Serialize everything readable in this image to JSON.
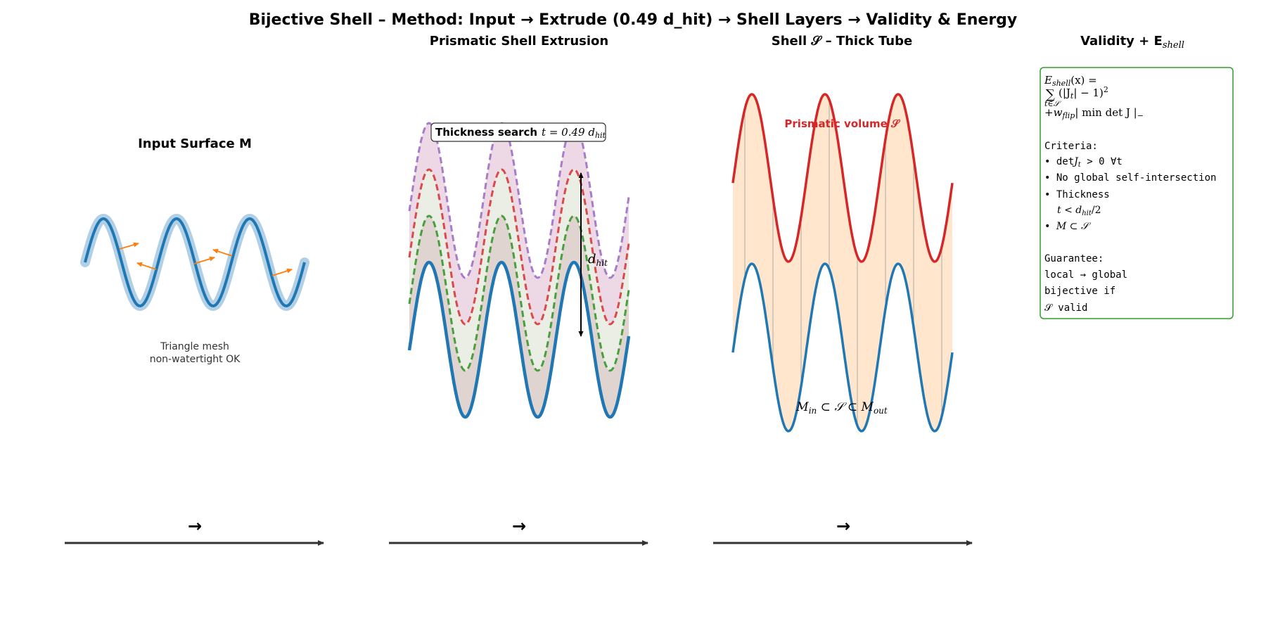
{
  "figure": {
    "title": "Bijective Shell – Method: Input → Extrude (0.49 d_hit) → Shell Layers → Validity & Energy"
  },
  "panels": {
    "input": {
      "title": "Input Surface M",
      "caption_line1": "Triangle mesh",
      "caption_line2": "non-watertight OK"
    },
    "extrusion": {
      "title": "Prismatic Shell Extrusion",
      "box_bold": "Thickness search",
      "box_math": "t = 0.49 d",
      "box_sub": "hit",
      "dhit_main": "d",
      "dhit_sub": "hit"
    },
    "shell": {
      "title_text": "Shell 𝒮 – Thick Tube",
      "label_volume": "Prismatic volume 𝒮",
      "label_relation": "M",
      "label_relation_sub1": "in",
      "label_relation_mid": " ⊂ 𝒮 ⊂ M",
      "label_relation_sub2": "out"
    },
    "validity": {
      "title_text": "Validity + E",
      "title_sub": "shell",
      "energy_l1_a": "E",
      "energy_l1_sub": "shell",
      "energy_l1_b": "(x) =",
      "energy_l2_sum": "∑",
      "energy_l2": "(|J",
      "energy_l2_sub": "t",
      "energy_l2_b": "| − 1)",
      "energy_l2_sup": "2",
      "energy_l2_under": "t∈𝒮",
      "energy_l3_a": "+w",
      "energy_l3_sub": "flip",
      "energy_l3_b": "| min det J |",
      "energy_l3_sub2": "−",
      "criteria_title": "Criteria:",
      "crit1_a": "• det",
      "crit1_j": "J",
      "crit1_sub": "t",
      "crit1_b": " > 0 ∀t",
      "crit2": "• No global self-intersection",
      "crit3": "• Thickness",
      "crit3_b_a": "t < d",
      "crit3_b_sub": "hit",
      "crit3_b_c": "/2",
      "crit4_a": "• ",
      "crit4_b": "M ⊂ 𝒮",
      "guarantee_title": "Guarantee:",
      "guarantee_l1": "local → global",
      "guarantee_l2": "bijective if",
      "guarantee_l3": "𝒮 valid"
    }
  },
  "flow_arrows": [
    "→",
    "→",
    "→"
  ],
  "colors": {
    "surface_blue": "#1f77b4",
    "normal_orange": "#ff7f0e",
    "layer_green": "#4a9e3f",
    "layer_red": "#d94a4a",
    "layer_purple": "#a77cc8",
    "shell_outer_red": "#d62728",
    "shell_fill": "#ffe6cc",
    "box_green": "#2ca02c",
    "arrow_dark": "#333333"
  },
  "icons": {
    "flow_arrow": "long-right-arrow",
    "thickness_arrow": "double-headed-vertical-arrow"
  }
}
